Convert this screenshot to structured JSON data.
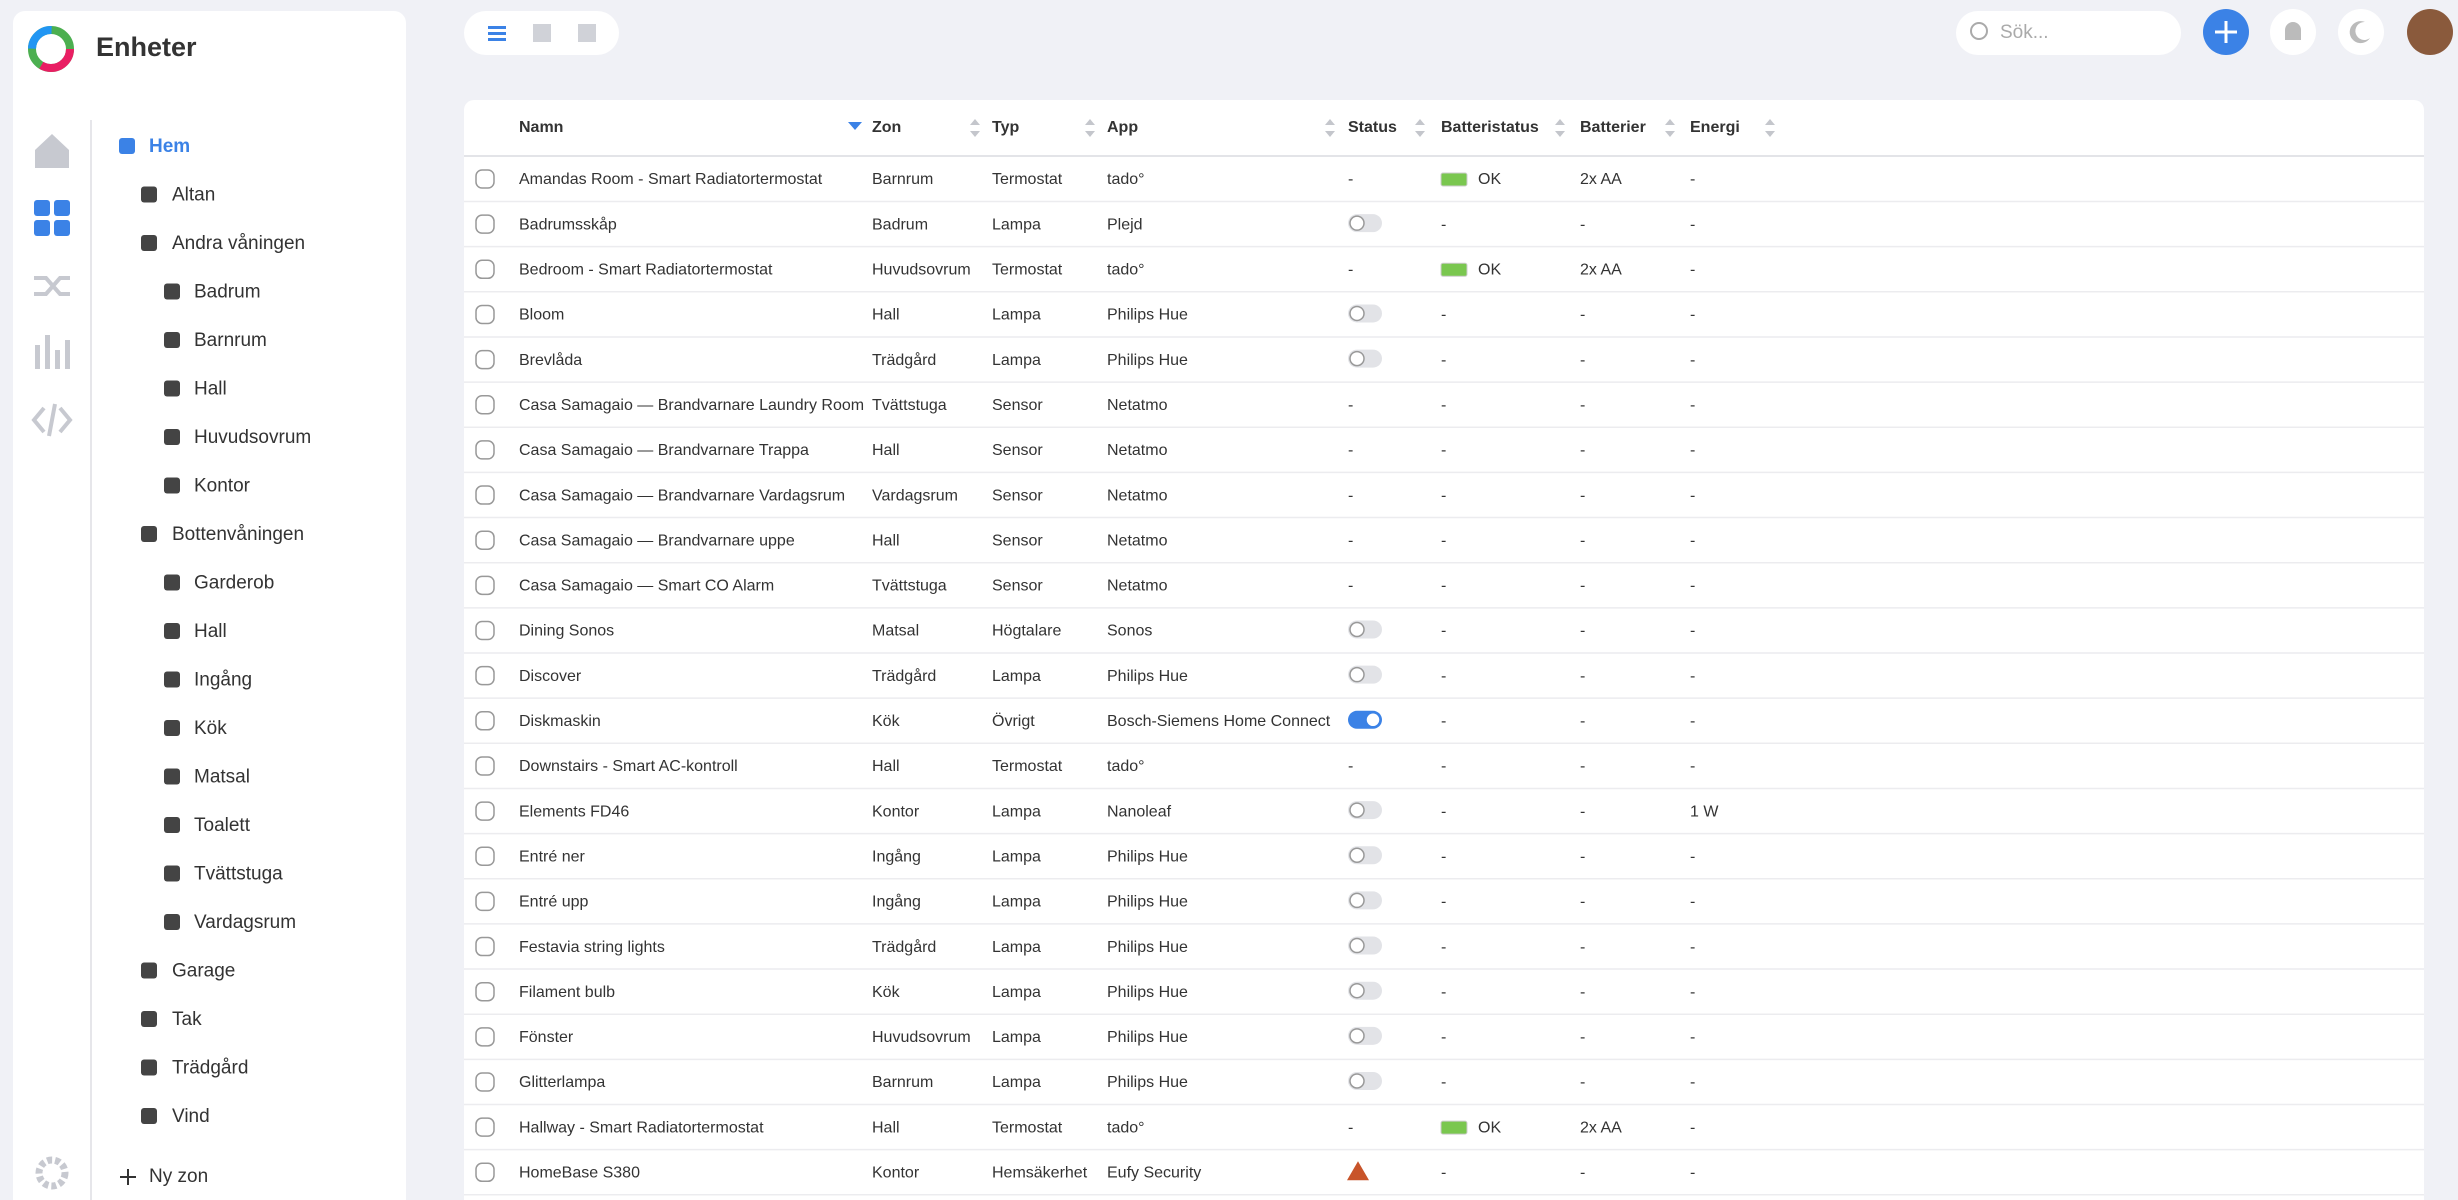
{
  "app_title": "Enheter",
  "search_placeholder": "Sök...",
  "zones": [
    {
      "label": "Hem",
      "level": 0
    },
    {
      "label": "Altan",
      "level": 1
    },
    {
      "label": "Andra våningen",
      "level": 1
    },
    {
      "label": "Badrum",
      "level": 2
    },
    {
      "label": "Barnrum",
      "level": 2
    },
    {
      "label": "Hall",
      "level": 2
    },
    {
      "label": "Huvudsovrum",
      "level": 2
    },
    {
      "label": "Kontor",
      "level": 2
    },
    {
      "label": "Bottenvåningen",
      "level": 1
    },
    {
      "label": "Garderob",
      "level": 2
    },
    {
      "label": "Hall",
      "level": 2
    },
    {
      "label": "Ingång",
      "level": 2
    },
    {
      "label": "Kök",
      "level": 2
    },
    {
      "label": "Matsal",
      "level": 2
    },
    {
      "label": "Toalett",
      "level": 2
    },
    {
      "label": "Tvättstuga",
      "level": 2
    },
    {
      "label": "Vardagsrum",
      "level": 2
    },
    {
      "label": "Garage",
      "level": 1
    },
    {
      "label": "Tak",
      "level": 1
    },
    {
      "label": "Trädgård",
      "level": 1
    },
    {
      "label": "Vind",
      "level": 1
    }
  ],
  "new_zone": "Ny zon",
  "table": {
    "headers": [
      "Namn",
      "Zon",
      "Typ",
      "App",
      "Status",
      "Batteristatus",
      "Batterier",
      "Energi"
    ],
    "rows": [
      [
        "Amandas Room - Smart Radiatortermostat",
        "Barnrum",
        "Termostat",
        "tado°",
        "-",
        "OK",
        "2x AA",
        "-"
      ],
      [
        "Badrumsskåp",
        "Badrum",
        "Lampa",
        "Plejd",
        {
          "toggle": false
        },
        "-",
        "-",
        "-"
      ],
      [
        "Bedroom - Smart Radiatortermostat",
        "Huvudsovrum",
        "Termostat",
        "tado°",
        "-",
        "OK",
        "2x AA",
        "-"
      ],
      [
        "Bloom",
        "Hall",
        "Lampa",
        "Philips Hue",
        {
          "toggle": false
        },
        "-",
        "-",
        "-"
      ],
      [
        "Brevlåda",
        "Trädgård",
        "Lampa",
        "Philips Hue",
        {
          "toggle": false
        },
        "-",
        "-",
        "-"
      ],
      [
        "Casa Samagaio — Brandvarnare Laundry Room",
        "Tvättstuga",
        "Sensor",
        "Netatmo",
        "-",
        "-",
        "-",
        "-"
      ],
      [
        "Casa Samagaio — Brandvarnare Trappa",
        "Hall",
        "Sensor",
        "Netatmo",
        "-",
        "-",
        "-",
        "-"
      ],
      [
        "Casa Samagaio — Brandvarnare Vardagsrum",
        "Vardagsrum",
        "Sensor",
        "Netatmo",
        "-",
        "-",
        "-",
        "-"
      ],
      [
        "Casa Samagaio — Brandvarnare uppe",
        "Hall",
        "Sensor",
        "Netatmo",
        "-",
        "-",
        "-",
        "-"
      ],
      [
        "Casa Samagaio — Smart CO Alarm",
        "Tvättstuga",
        "Sensor",
        "Netatmo",
        "-",
        "-",
        "-",
        "-"
      ],
      [
        "Dining Sonos",
        "Matsal",
        "Högtalare",
        "Sonos",
        {
          "toggle": false
        },
        "-",
        "-",
        "-"
      ],
      [
        "Discover",
        "Trädgård",
        "Lampa",
        "Philips Hue",
        {
          "toggle": false
        },
        "-",
        "-",
        "-"
      ],
      [
        "Diskmaskin",
        "Kök",
        "Övrigt",
        "Bosch-Siemens Home Connect",
        {
          "toggle": true
        },
        "-",
        "-",
        "-"
      ],
      [
        "Downstairs - Smart AC-kontroll",
        "Hall",
        "Termostat",
        "tado°",
        "-",
        "-",
        "-",
        "-"
      ],
      [
        "Elements FD46",
        "Kontor",
        "Lampa",
        "Nanoleaf",
        {
          "toggle": false
        },
        "-",
        "-",
        "1 W"
      ],
      [
        "Entré ner",
        "Ingång",
        "Lampa",
        "Philips Hue",
        {
          "toggle": false
        },
        "-",
        "-",
        "-"
      ],
      [
        "Entré upp",
        "Ingång",
        "Lampa",
        "Philips Hue",
        {
          "toggle": false
        },
        "-",
        "-",
        "-"
      ],
      [
        "Festavia string lights",
        "Trädgård",
        "Lampa",
        "Philips Hue",
        {
          "toggle": false
        },
        "-",
        "-",
        "-"
      ],
      [
        "Filament bulb",
        "Kök",
        "Lampa",
        "Philips Hue",
        {
          "toggle": false
        },
        "-",
        "-",
        "-"
      ],
      [
        "Fönster",
        "Huvudsovrum",
        "Lampa",
        "Philips Hue",
        {
          "toggle": false
        },
        "-",
        "-",
        "-"
      ],
      [
        "Glitterlampa",
        "Barnrum",
        "Lampa",
        "Philips Hue",
        {
          "toggle": false
        },
        "-",
        "-",
        "-"
      ],
      [
        "Hallway - Smart Radiatortermostat",
        "Hall",
        "Termostat",
        "tado°",
        "-",
        "OK",
        "2x AA",
        "-"
      ],
      [
        "HomeBase S380",
        "Kontor",
        "Hemsäkerhet",
        "Eufy Security",
        {
          "warning": true
        },
        "-",
        "-",
        "-"
      ]
    ]
  }
}
